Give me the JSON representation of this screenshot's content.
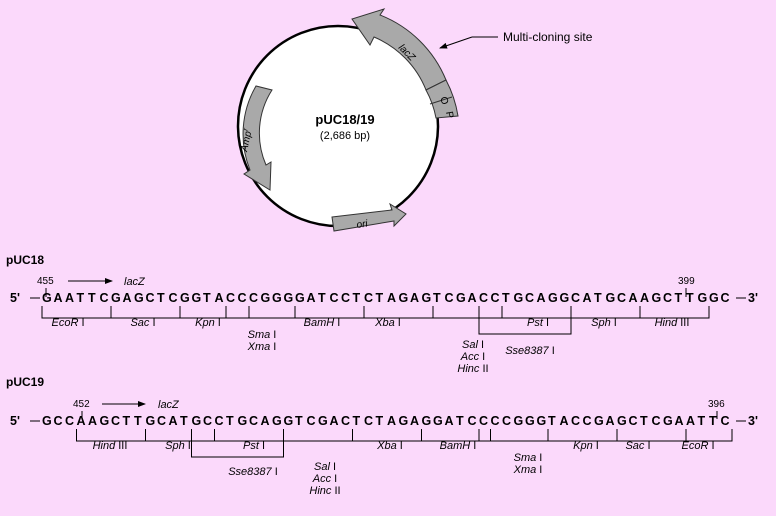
{
  "plasmid": {
    "name": "pUC18/19",
    "size": "(2,686 bp)",
    "mcs_label": "Multi-cloning site",
    "genes": {
      "lacz": "lacZ",
      "amp": "Amp",
      "amp_sup": "r",
      "ori": "ori",
      "o": "O",
      "p": "P"
    }
  },
  "puc18": {
    "title": "pUC18",
    "start_num": "455",
    "end_num": "399",
    "lacz": "lacZ",
    "prefix": "5'",
    "suffix": "3'",
    "sequence": "GAATTCGAGCTCGGTACCCGGGGATCCTCTAGAGTCGACCTGCAGGCATGCAAGCTTGGC",
    "sites": [
      {
        "lines": [
          "EcoR I"
        ]
      },
      {
        "lines": [
          "Sac I"
        ]
      },
      {
        "lines": [
          "Kpn I"
        ]
      },
      {
        "lines": [
          "Sma I",
          "Xma I"
        ]
      },
      {
        "lines": [
          "BamH I"
        ]
      },
      {
        "lines": [
          "Xba I"
        ]
      },
      {
        "lines": [
          "Sal I",
          "Acc I",
          "Hinc II"
        ]
      },
      {
        "lines": [
          "Pst I"
        ]
      },
      {
        "lines": [
          "Sse8387 I"
        ]
      },
      {
        "lines": [
          "Sph I"
        ]
      },
      {
        "lines": [
          "Hind III"
        ]
      }
    ]
  },
  "puc19": {
    "title": "pUC19",
    "start_num": "452",
    "end_num": "396",
    "lacz": "lacZ",
    "prefix": "5'",
    "suffix": "3'",
    "sequence": "GCCAAGCTTGCATGCCTGCAGGTCGACTCTAGAGGATCCCCGGGTACCGAGCTCGAATTC",
    "sites": [
      {
        "lines": [
          "Hind III"
        ]
      },
      {
        "lines": [
          "Sph I"
        ]
      },
      {
        "lines": [
          "Pst I"
        ]
      },
      {
        "lines": [
          "Sse8387 I"
        ]
      },
      {
        "lines": [
          "Sal I",
          "Acc I",
          "Hinc II"
        ]
      },
      {
        "lines": [
          "Xba I"
        ]
      },
      {
        "lines": [
          "BamH I"
        ]
      },
      {
        "lines": [
          "Sma I",
          "Xma I"
        ]
      },
      {
        "lines": [
          "Kpn I"
        ]
      },
      {
        "lines": [
          "Sac I"
        ]
      },
      {
        "lines": [
          "EcoR I"
        ]
      }
    ]
  }
}
